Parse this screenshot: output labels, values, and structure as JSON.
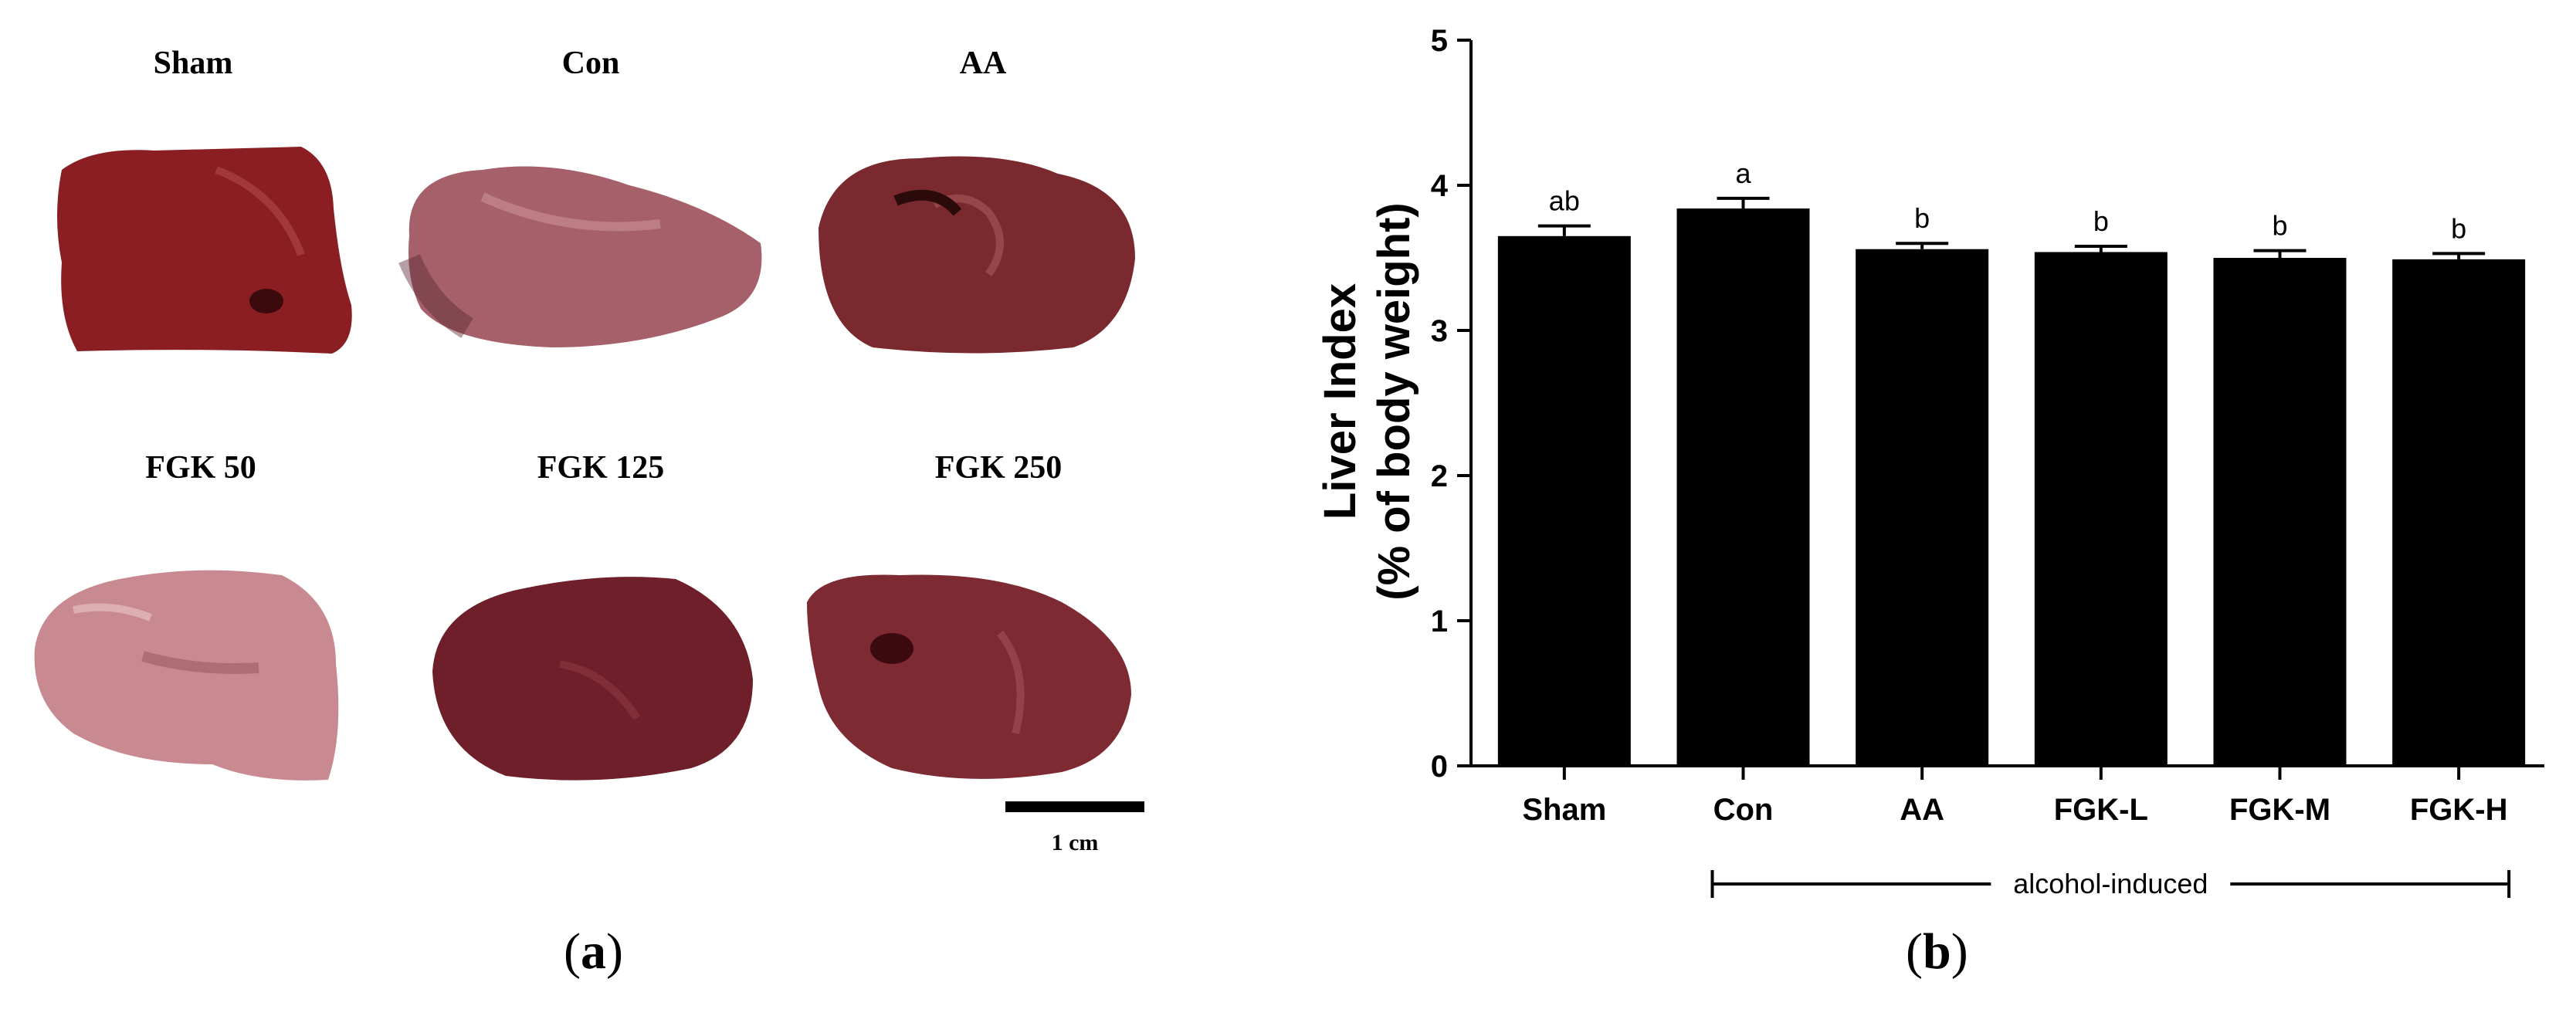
{
  "panel_a": {
    "photos": [
      {
        "label": "Sham",
        "color": "#8a1e22"
      },
      {
        "label": "Con",
        "color": "#a5606a"
      },
      {
        "label": "AA",
        "color": "#7a2a2e"
      },
      {
        "label": "FGK 50",
        "color": "#c88a90"
      },
      {
        "label": "FGK 125",
        "color": "#6e1f29"
      },
      {
        "label": "FGK 250",
        "color": "#7d2a33"
      }
    ],
    "scale_label": "1 cm",
    "panel_label": "a"
  },
  "panel_b_label": "b",
  "chart_data": {
    "type": "bar",
    "categories": [
      "Sham",
      "Con",
      "AA",
      "FGK-L",
      "FGK-M",
      "FGK-H"
    ],
    "values": [
      3.65,
      3.84,
      3.56,
      3.54,
      3.5,
      3.49
    ],
    "errors": [
      0.07,
      0.07,
      0.04,
      0.04,
      0.05,
      0.04
    ],
    "significance": [
      "ab",
      "a",
      "b",
      "b",
      "b",
      "b"
    ],
    "ylabel_line1": "Liver Index",
    "ylabel_line2": "(% of body weight)",
    "ylim": [
      0,
      5
    ],
    "yticks": [
      0,
      1,
      2,
      3,
      4,
      5
    ],
    "bar_color": "#000000",
    "group_bracket": {
      "label": "alcohol-induced",
      "from": "Con",
      "to": "FGK-H"
    }
  }
}
